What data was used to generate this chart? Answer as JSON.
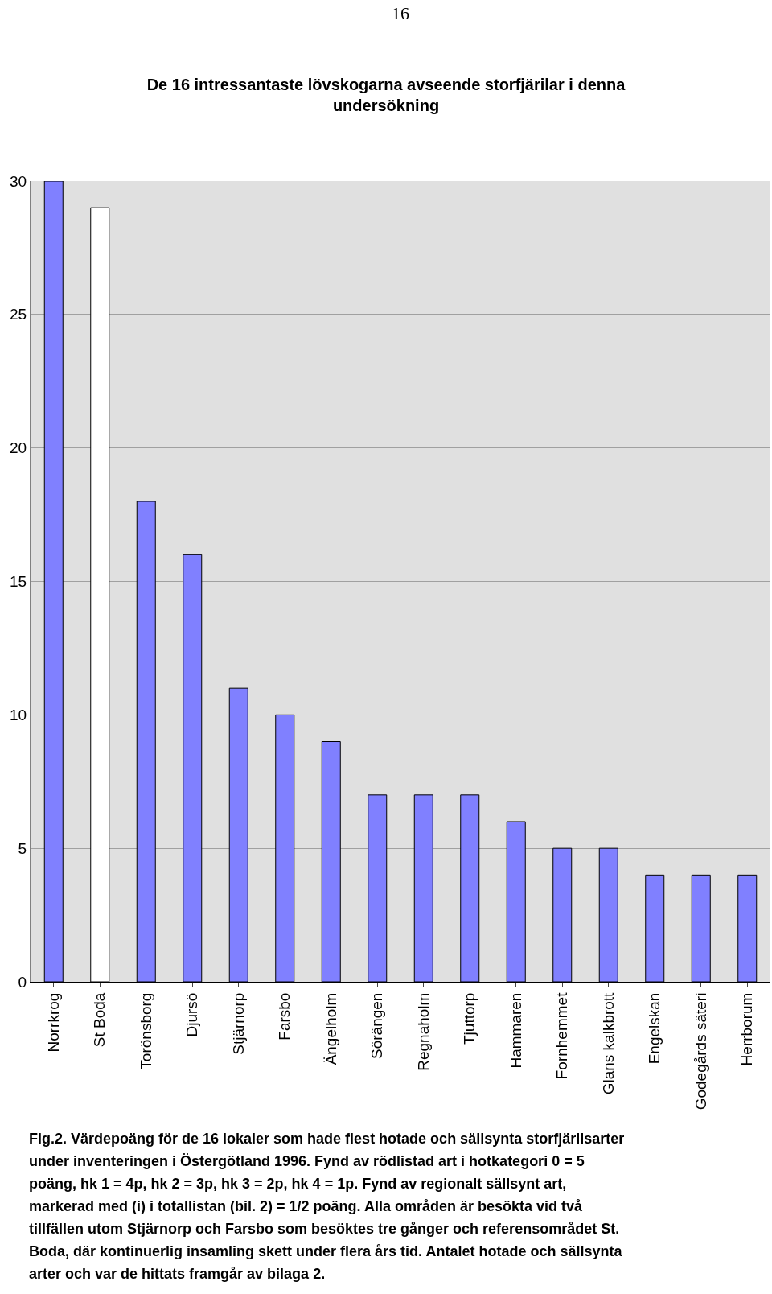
{
  "chart_data": {
    "type": "bar",
    "title": "De 16 intressantaste lövskogarna avseende storfjärilar i denna\nundersökning",
    "categories": [
      "Norrkrog",
      "St Boda",
      "Torönsborg",
      "Djursö",
      "Stjärnorp",
      "Farsbo",
      "Ängelholm",
      "Sörängen",
      "Regnaholm",
      "Tjuttorp",
      "Hammaren",
      "Fornhemmet",
      "Glans kalkbrott",
      "Engelskan",
      "Godegårds säteri",
      "Herrborum"
    ],
    "values": [
      30,
      29,
      18,
      16,
      11,
      10,
      9,
      7,
      7,
      7,
      6,
      5,
      5,
      4,
      4,
      4
    ],
    "colors": [
      "#8080ff",
      "#ffffff",
      "#8080ff",
      "#8080ff",
      "#8080ff",
      "#8080ff",
      "#8080ff",
      "#8080ff",
      "#8080ff",
      "#8080ff",
      "#8080ff",
      "#8080ff",
      "#8080ff",
      "#8080ff",
      "#8080ff",
      "#8080ff"
    ],
    "ylim": [
      0,
      30
    ],
    "yticks": [
      0,
      5,
      10,
      15,
      20,
      25,
      30
    ],
    "grid": "y",
    "legend": false,
    "annotations": [
      "16",
      "Fig.2. Värdepoäng för de 16 lokaler som hade flest hotade och sällsynta storfjärilsarter\nunder inventeringen i Östergötland 1996. Fynd av rödlistad art i hotkategori 0 = 5\npoäng, hk 1 = 4p, hk 2 = 3p, hk 3 = 2p, hk 4 = 1p. Fynd av regionalt sällsynt art,\nmarkerad med (i) i totallistan (bil. 2) = 1/2 poäng. Alla områden är besökta vid två\ntillfällen utom Stjärnorp och Farsbo som besöktes tre gånger och referensområdet St.\nBoda, där kontinuerlig insamling skett under flera års tid. Antalet hotade och sällsynta\narter och var de hittats framgår av bilaga 2."
    ]
  }
}
